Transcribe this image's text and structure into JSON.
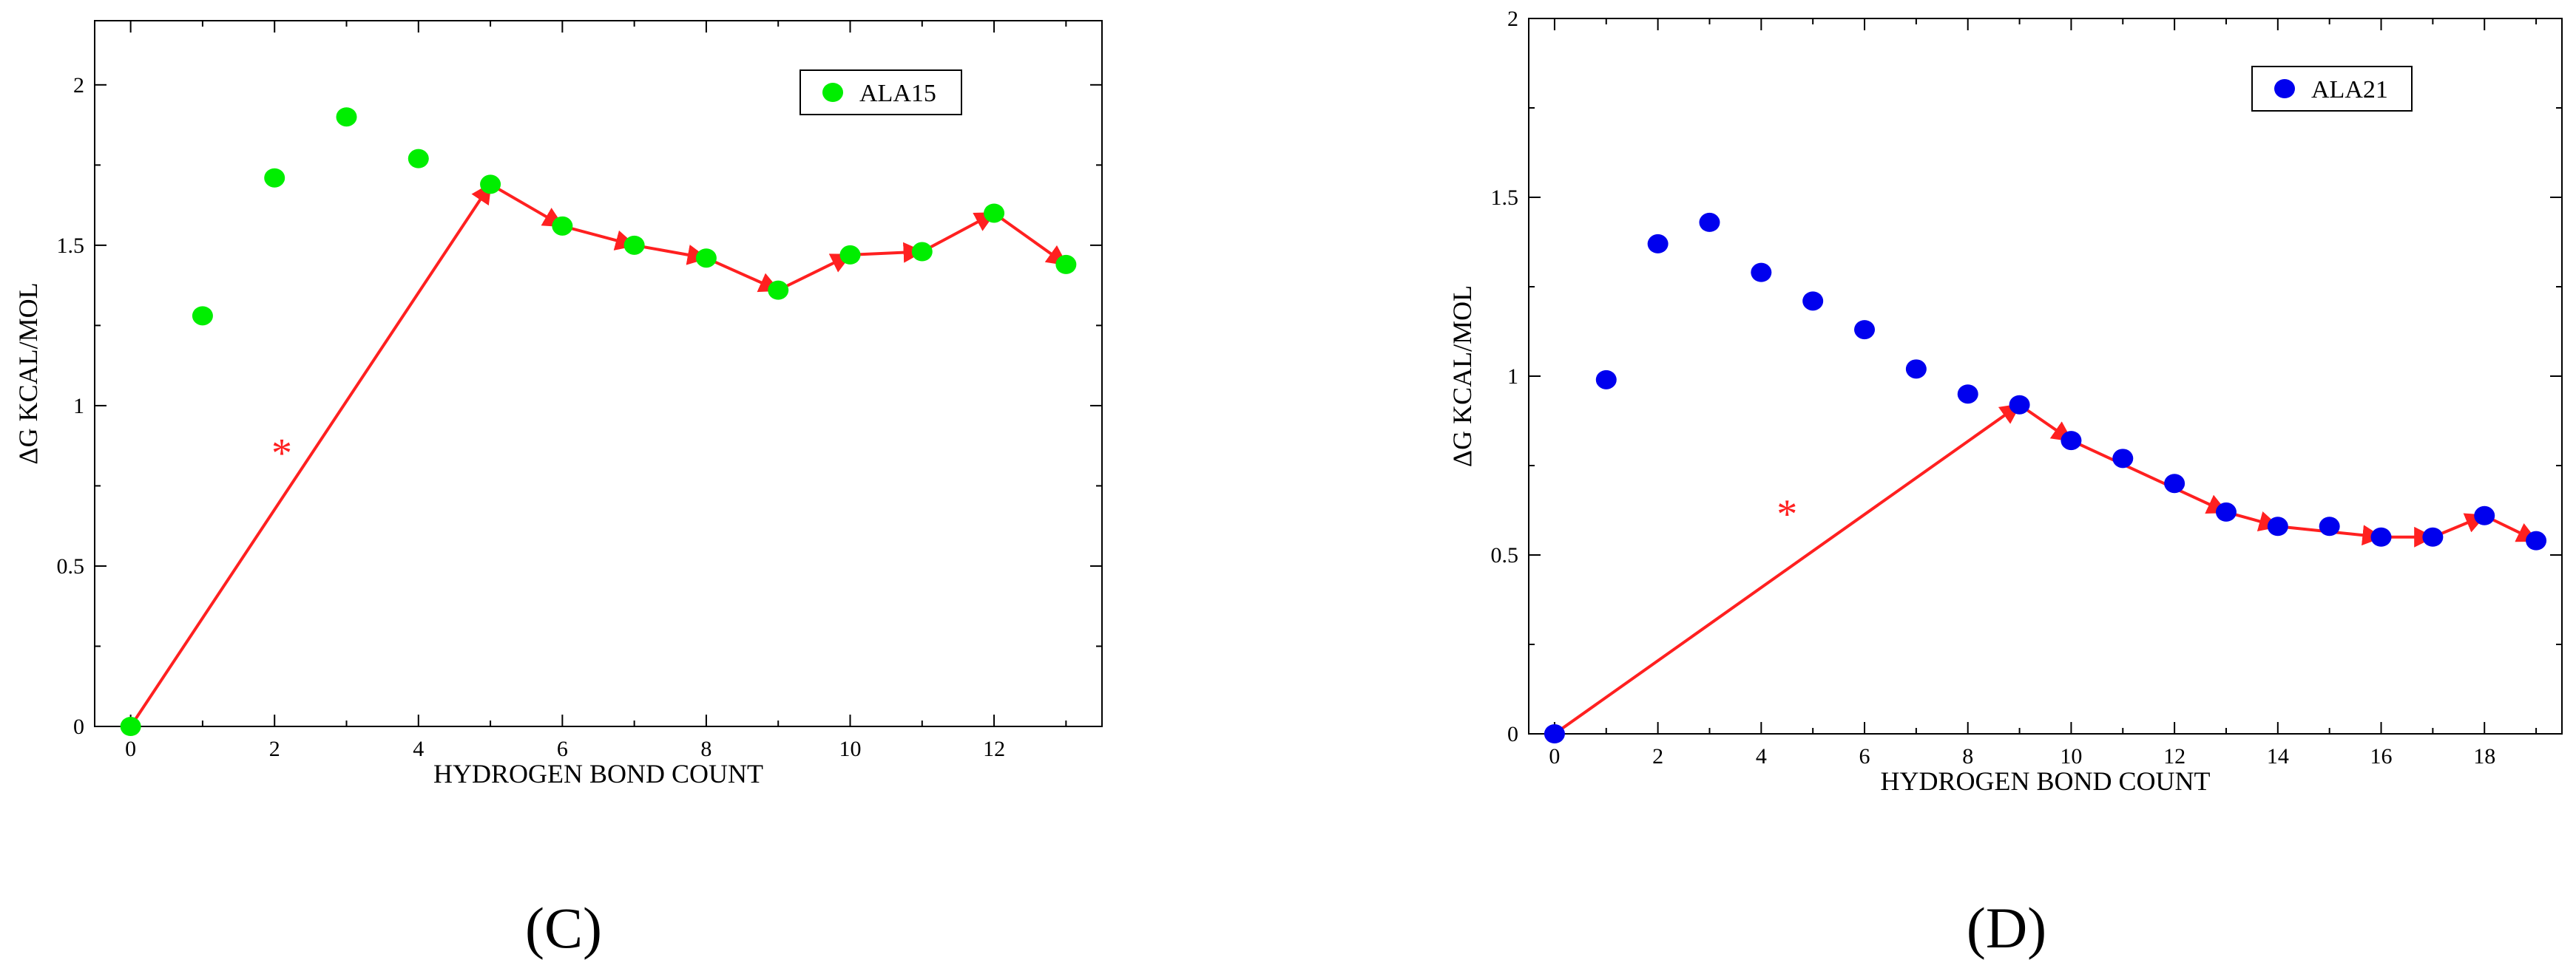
{
  "chart_data": [
    {
      "type": "scatter",
      "panel_label": "(C)",
      "title": "",
      "xlabel": "HYDROGEN BOND COUNT",
      "ylabel": "ΔG KCAL/MOL",
      "xlim": [
        -0.5,
        13.5
      ],
      "ylim": [
        0,
        2.2
      ],
      "xticks": [
        0,
        2,
        4,
        6,
        8,
        10,
        12
      ],
      "yticks": [
        0,
        0.5,
        1,
        1.5,
        2
      ],
      "xtick_labels": [
        "0",
        "2",
        "4",
        "6",
        "8",
        "10",
        "12"
      ],
      "ytick_labels": [
        "0",
        "0.5",
        "1",
        "1.5",
        "2"
      ],
      "grid": false,
      "legend_position": "top-right",
      "series": [
        {
          "name": "ALA15",
          "color": "#00ee00",
          "x": [
            0,
            1,
            2,
            3,
            4,
            5,
            6,
            7,
            8,
            9,
            10,
            11,
            12,
            13
          ],
          "y": [
            0,
            1.28,
            1.71,
            1.9,
            1.77,
            1.69,
            1.56,
            1.5,
            1.46,
            1.36,
            1.47,
            1.48,
            1.6,
            1.44
          ]
        }
      ],
      "path": {
        "color": "#ff2020",
        "x": [
          0,
          5,
          6,
          7,
          8,
          9,
          10,
          11,
          12,
          13
        ],
        "y": [
          0,
          1.69,
          1.56,
          1.5,
          1.46,
          1.36,
          1.47,
          1.48,
          1.6,
          1.44
        ]
      },
      "annotation": {
        "text": "*",
        "color": "#ff2020",
        "x": 2.1,
        "y": 0.87
      }
    },
    {
      "type": "scatter",
      "panel_label": "(D)",
      "title": "",
      "xlabel": "HYDROGEN BOND COUNT",
      "ylabel": "ΔG KCAL/MOL",
      "xlim": [
        -0.5,
        19.5
      ],
      "ylim": [
        0,
        2
      ],
      "xticks": [
        0,
        2,
        4,
        6,
        8,
        10,
        12,
        14,
        16,
        18
      ],
      "yticks": [
        0,
        0.5,
        1,
        1.5,
        2
      ],
      "xtick_labels": [
        "0",
        "2",
        "4",
        "6",
        "8",
        "10",
        "12",
        "14",
        "16",
        "18"
      ],
      "ytick_labels": [
        "0",
        "0.5",
        "1",
        "1.5",
        "2"
      ],
      "grid": false,
      "legend_position": "top-right",
      "series": [
        {
          "name": "ALA21",
          "color": "#0000ee",
          "x": [
            0,
            1,
            2,
            3,
            4,
            5,
            6,
            7,
            8,
            9,
            10,
            11,
            12,
            13,
            14,
            15,
            16,
            17,
            18,
            19
          ],
          "y": [
            0,
            0.99,
            1.37,
            1.43,
            1.29,
            1.21,
            1.13,
            1.02,
            0.95,
            0.92,
            0.82,
            0.77,
            0.7,
            0.62,
            0.58,
            0.58,
            0.55,
            0.55,
            0.61,
            0.54
          ]
        }
      ],
      "path": {
        "color": "#ff2020",
        "x": [
          0,
          9,
          10,
          13,
          14,
          16,
          17,
          18,
          19
        ],
        "y": [
          0,
          0.92,
          0.82,
          0.62,
          0.58,
          0.55,
          0.55,
          0.61,
          0.54
        ]
      },
      "annotation": {
        "text": "*",
        "color": "#ff2020",
        "x": 4.5,
        "y": 0.63
      }
    }
  ]
}
